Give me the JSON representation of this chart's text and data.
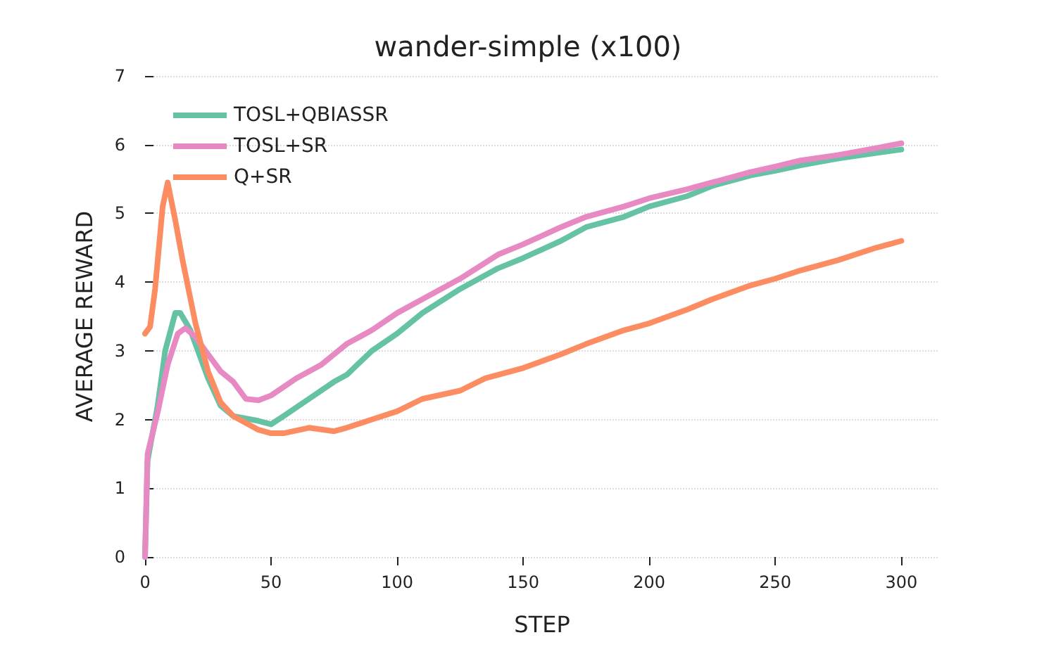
{
  "chart_data": {
    "type": "line",
    "title": "wander-simple (x100)",
    "xlabel": "STEP",
    "ylabel": "AVERAGE REWARD",
    "xlim": [
      0,
      315
    ],
    "xticks": [
      0,
      50,
      100,
      150,
      200,
      250,
      300
    ],
    "ylim": [
      0,
      7
    ],
    "yticks": [
      0,
      1,
      2,
      3,
      4,
      5,
      6,
      7
    ],
    "grid": "y",
    "legend": "top left",
    "marker": "none",
    "line_style": "solid",
    "series": [
      {
        "name": "TOSL+QBIASSR",
        "color": "#66c2a5",
        "x": [
          0,
          1,
          5,
          8,
          12,
          14,
          18,
          25,
          30,
          35,
          45,
          50,
          55,
          65,
          75,
          80,
          90,
          100,
          110,
          125,
          140,
          150,
          165,
          175,
          190,
          200,
          215,
          225,
          240,
          250,
          260,
          275,
          290,
          300
        ],
        "values": [
          0,
          1.4,
          2.2,
          3.0,
          3.55,
          3.55,
          3.3,
          2.6,
          2.2,
          2.05,
          1.98,
          1.93,
          2.05,
          2.3,
          2.55,
          2.65,
          3.0,
          3.25,
          3.55,
          3.9,
          4.2,
          4.35,
          4.6,
          4.8,
          4.95,
          5.1,
          5.25,
          5.4,
          5.55,
          5.62,
          5.7,
          5.8,
          5.88,
          5.93
        ]
      },
      {
        "name": "TOSL+SR",
        "color": "#e78ac3",
        "x": [
          0,
          1,
          5,
          9,
          13,
          16,
          20,
          25,
          30,
          35,
          40,
          45,
          50,
          60,
          70,
          80,
          90,
          100,
          110,
          125,
          140,
          150,
          165,
          175,
          190,
          200,
          215,
          225,
          240,
          250,
          260,
          275,
          290,
          300
        ],
        "values": [
          0,
          1.5,
          2.1,
          2.8,
          3.25,
          3.33,
          3.2,
          2.95,
          2.7,
          2.55,
          2.3,
          2.28,
          2.35,
          2.6,
          2.8,
          3.1,
          3.3,
          3.55,
          3.75,
          4.05,
          4.4,
          4.55,
          4.8,
          4.95,
          5.1,
          5.22,
          5.35,
          5.45,
          5.6,
          5.68,
          5.77,
          5.85,
          5.95,
          6.02
        ]
      },
      {
        "name": "Q+SR",
        "color": "#fc8d62",
        "x": [
          0,
          2,
          4,
          7,
          9,
          12,
          15,
          20,
          25,
          30,
          35,
          40,
          45,
          50,
          55,
          65,
          75,
          80,
          90,
          100,
          110,
          125,
          135,
          150,
          165,
          175,
          190,
          200,
          215,
          225,
          240,
          250,
          260,
          275,
          290,
          300
        ],
        "values": [
          3.25,
          3.35,
          3.9,
          5.1,
          5.45,
          4.9,
          4.3,
          3.4,
          2.7,
          2.25,
          2.05,
          1.95,
          1.85,
          1.8,
          1.8,
          1.88,
          1.83,
          1.88,
          2.0,
          2.12,
          2.3,
          2.42,
          2.6,
          2.75,
          2.95,
          3.1,
          3.3,
          3.4,
          3.6,
          3.75,
          3.95,
          4.05,
          4.17,
          4.32,
          4.5,
          4.6
        ]
      }
    ]
  }
}
